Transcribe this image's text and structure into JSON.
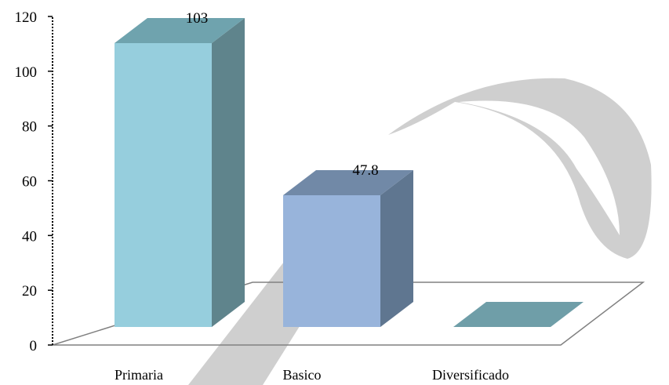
{
  "chart_data": {
    "type": "bar",
    "style": "3d",
    "categories": [
      "Primaria",
      "Basico",
      "Diversificado"
    ],
    "values": [
      103,
      47.8,
      0
    ],
    "data_labels": [
      "103",
      "47.8",
      ""
    ],
    "ylim": [
      0,
      120
    ],
    "yticks": [
      "0",
      "20",
      "40",
      "60",
      "80",
      "100",
      "120"
    ],
    "grid": false,
    "legend": "none",
    "colors": {
      "Primaria": {
        "front": "#96CEDD",
        "side": "#5F848C",
        "top": "#6FA3AE"
      },
      "Basico": {
        "front": "#98B4DB",
        "side": "#5F7690",
        "top": "#7189A7"
      },
      "Diversificado": {
        "front": "#7CA7B3",
        "side": "#5F848C",
        "top": "#6F9EA8"
      },
      "floor_stroke": "#808080",
      "axis_stroke": "#000000",
      "watermark": "#cfcfcf"
    },
    "watermark": "P-logo"
  }
}
